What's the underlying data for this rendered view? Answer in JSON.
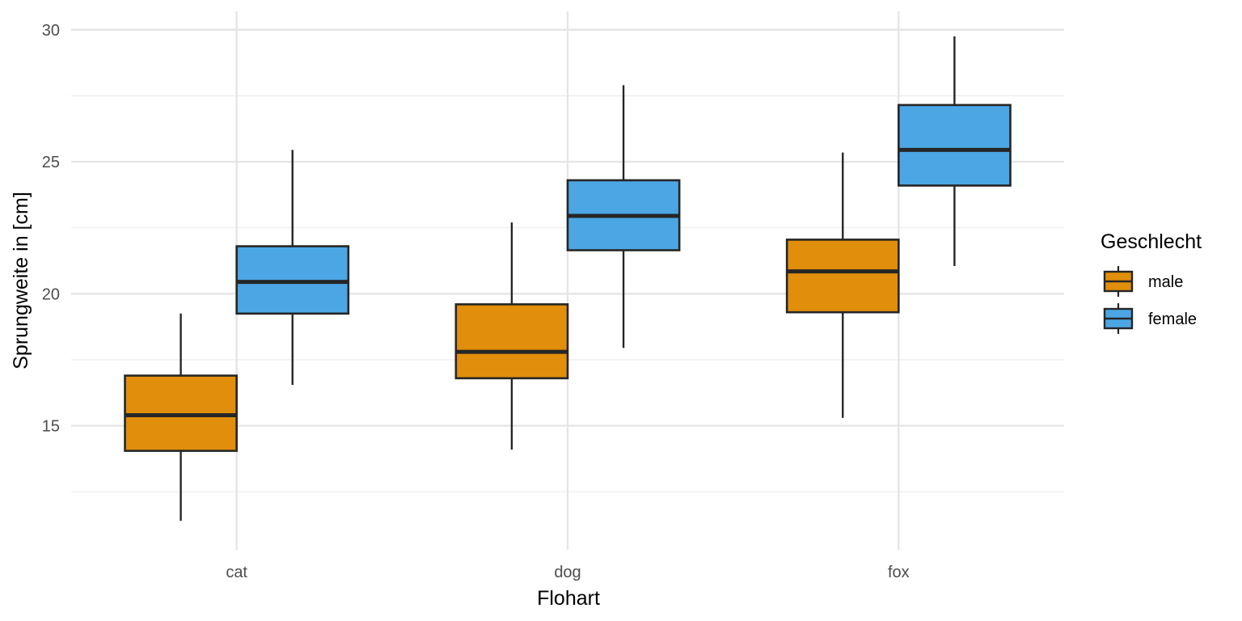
{
  "chart_data": {
    "type": "boxplot",
    "title": "",
    "xlabel": "Flohart",
    "ylabel": "Sprungweite in [cm]",
    "categories": [
      "cat",
      "dog",
      "fox"
    ],
    "ylim": [
      10.3,
      30.7
    ],
    "yticks": [
      15,
      20,
      25,
      30
    ],
    "grid": true,
    "legend": {
      "title": "Geschlecht",
      "position": "right"
    },
    "series": [
      {
        "name": "male",
        "color": "#E08E0B",
        "boxes": [
          {
            "category": "cat",
            "whisker_low": 11.4,
            "q1": 14.05,
            "median": 15.4,
            "q3": 16.9,
            "whisker_high": 19.25
          },
          {
            "category": "dog",
            "whisker_low": 14.1,
            "q1": 16.8,
            "median": 17.8,
            "q3": 19.6,
            "whisker_high": 22.7
          },
          {
            "category": "fox",
            "whisker_low": 15.3,
            "q1": 19.3,
            "median": 20.85,
            "q3": 22.05,
            "whisker_high": 25.35
          }
        ]
      },
      {
        "name": "female",
        "color": "#4BA6E3",
        "boxes": [
          {
            "category": "cat",
            "whisker_low": 16.55,
            "q1": 19.25,
            "median": 20.45,
            "q3": 21.8,
            "whisker_high": 25.45
          },
          {
            "category": "dog",
            "whisker_low": 17.95,
            "q1": 21.65,
            "median": 22.95,
            "q3": 24.3,
            "whisker_high": 27.9
          },
          {
            "category": "fox",
            "whisker_low": 21.05,
            "q1": 24.1,
            "median": 25.45,
            "q3": 27.15,
            "whisker_high": 29.75
          }
        ]
      }
    ]
  }
}
